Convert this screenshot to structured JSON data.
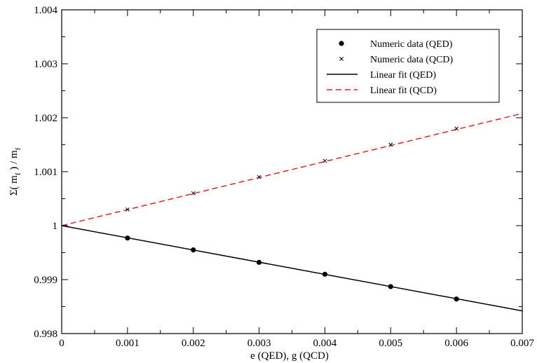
{
  "chart_data": {
    "type": "scatter",
    "xlabel": "e (QED), g (QCD)",
    "ylabel_main": "Σ( m",
    "ylabel_sub1": "f",
    "ylabel_mid": " ) / m",
    "ylabel_sub2": "f",
    "xlim": [
      0,
      0.007
    ],
    "ylim": [
      0.998,
      1.004
    ],
    "x_ticks": [
      0,
      0.001,
      0.002,
      0.003,
      0.004,
      0.005,
      0.006,
      0.007
    ],
    "x_tick_labels": [
      "0",
      "0.001",
      "0.002",
      "0.003",
      "0.004",
      "0.005",
      "0.006",
      "0.007"
    ],
    "y_ticks": [
      0.998,
      0.999,
      1.0,
      1.001,
      1.002,
      1.003,
      1.004
    ],
    "y_tick_labels": [
      "0.998",
      "0.999",
      "1",
      "1.001",
      "1.002",
      "1.003",
      "1.004"
    ],
    "grid": false,
    "legend_position": "top-right",
    "series": [
      {
        "name": "Numeric data (QED)",
        "kind": "points",
        "marker": "circle",
        "color": "#000000",
        "x": [
          0.001,
          0.002,
          0.003,
          0.004,
          0.005,
          0.006
        ],
        "y": [
          0.99977,
          0.99955,
          0.99932,
          0.9991,
          0.99887,
          0.99864
        ]
      },
      {
        "name": "Numeric data (QCD)",
        "kind": "points",
        "marker": "x",
        "color": "#000000",
        "x": [
          0.001,
          0.002,
          0.003,
          0.004,
          0.005,
          0.006
        ],
        "y": [
          1.0003,
          1.0006,
          1.0009,
          1.0012,
          1.0015,
          1.0018
        ]
      },
      {
        "name": "Linear fit (QED)",
        "kind": "line",
        "dash": "solid",
        "color": "#000000",
        "x": [
          0,
          0.007
        ],
        "y": [
          1.0,
          0.99842
        ]
      },
      {
        "name": "Linear fit (QCD)",
        "kind": "line",
        "dash": "dashed",
        "color": "#e8201c",
        "x": [
          0,
          0.007
        ],
        "y": [
          1.0,
          1.00208
        ]
      }
    ]
  }
}
